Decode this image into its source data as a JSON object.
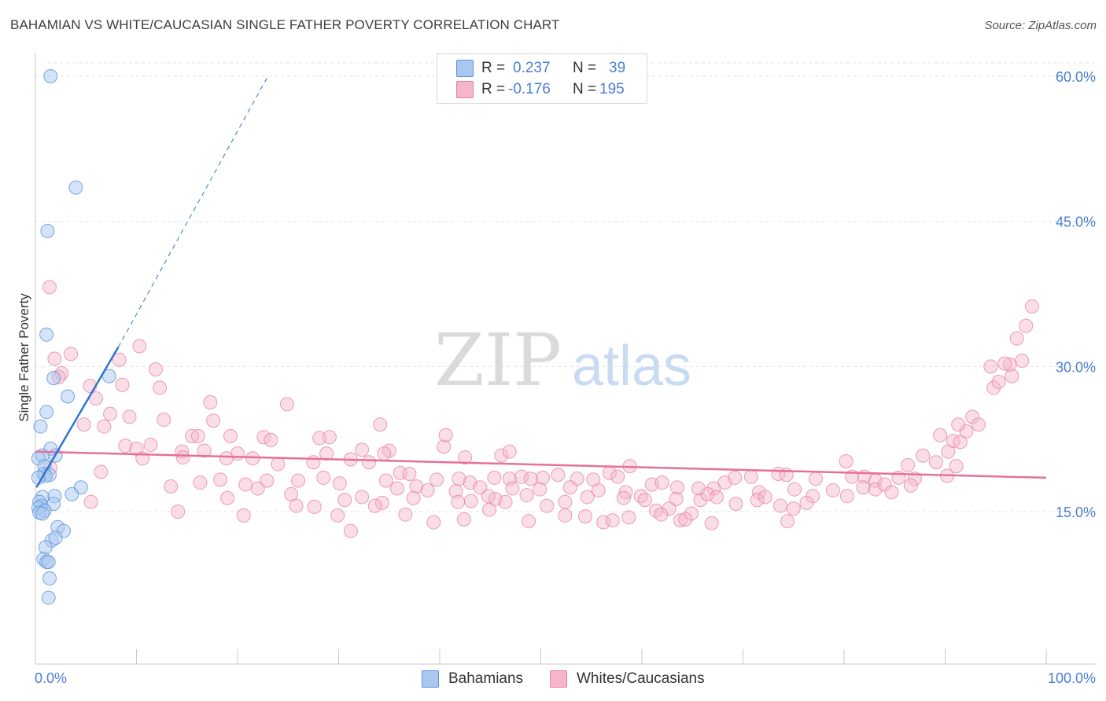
{
  "title": "BAHAMIAN VS WHITE/CAUCASIAN SINGLE FATHER POVERTY CORRELATION CHART",
  "source": "Source: ZipAtlas.com",
  "watermark": {
    "zip": "ZIP",
    "atlas": "atlas"
  },
  "colors": {
    "blue_fill": "#a9c8f0",
    "blue_stroke": "#5b93d8",
    "blue_line": "#2f74d0",
    "pink_fill": "#f5b6ca",
    "pink_stroke": "#e77fa0",
    "pink_line": "#e5719a",
    "value_text": "#4a7fd4"
  },
  "legend": {
    "rows": [
      {
        "r_label": "R =",
        "r_value": "0.237",
        "n_label": "N =",
        "n_value": "39"
      },
      {
        "r_label": "R =",
        "r_value": "-0.176",
        "n_label": "N =",
        "n_value": "195"
      }
    ]
  },
  "bottom_legend": {
    "series_a": "Bahamians",
    "series_b": "Whites/Caucasians"
  },
  "chart_data": {
    "type": "scatter",
    "xlabel": "",
    "ylabel": "Single Father Poverty",
    "xlim": [
      0,
      100
    ],
    "ylim": [
      0,
      62
    ],
    "x_tick_labels": [
      "0.0%",
      "100.0%"
    ],
    "y_ticks": [
      15,
      30,
      45,
      60
    ],
    "y_tick_labels": [
      "15.0%",
      "30.0%",
      "45.0%",
      "60.0%"
    ],
    "grid": true,
    "series": [
      {
        "name": "Bahamians",
        "R": 0.237,
        "N": 39,
        "trend": {
          "x0": 0.1,
          "y0": 17.5,
          "x1": 8.2,
          "y1": 32.0,
          "dash_to_x": 23.0,
          "dash_to_y": 60.0
        },
        "points": [
          [
            1.5,
            60.0
          ],
          [
            4.0,
            48.5
          ],
          [
            1.2,
            44.0
          ],
          [
            1.1,
            33.3
          ],
          [
            1.8,
            28.8
          ],
          [
            3.2,
            26.9
          ],
          [
            7.3,
            29.0
          ],
          [
            1.1,
            25.3
          ],
          [
            0.5,
            23.8
          ],
          [
            1.5,
            21.5
          ],
          [
            0.7,
            20.8
          ],
          [
            0.3,
            20.5
          ],
          [
            2.0,
            20.8
          ],
          [
            0.9,
            19.7
          ],
          [
            0.8,
            18.9
          ],
          [
            1.4,
            18.8
          ],
          [
            1.0,
            18.7
          ],
          [
            0.3,
            18.5
          ],
          [
            4.5,
            17.5
          ],
          [
            0.7,
            16.5
          ],
          [
            1.9,
            16.6
          ],
          [
            3.6,
            16.8
          ],
          [
            0.4,
            16.0
          ],
          [
            0.6,
            15.6
          ],
          [
            1.8,
            15.8
          ],
          [
            0.3,
            15.4
          ],
          [
            0.9,
            15.1
          ],
          [
            0.4,
            14.9
          ],
          [
            0.7,
            14.8
          ],
          [
            2.2,
            13.4
          ],
          [
            2.8,
            13.0
          ],
          [
            1.6,
            12.0
          ],
          [
            2.0,
            12.3
          ],
          [
            1.0,
            11.3
          ],
          [
            0.8,
            10.1
          ],
          [
            1.1,
            9.8
          ],
          [
            1.3,
            9.8
          ],
          [
            1.4,
            8.1
          ],
          [
            1.3,
            6.1
          ]
        ]
      },
      {
        "name": "Whites/Caucasians",
        "R": -0.176,
        "N": 195,
        "trend": {
          "x0": 0.0,
          "y0": 21.2,
          "x1": 100.0,
          "y1": 18.5
        },
        "points": [
          [
            1.4,
            38.2
          ],
          [
            3.5,
            31.3
          ],
          [
            1.9,
            30.8
          ],
          [
            2.6,
            29.3
          ],
          [
            2.3,
            28.9
          ],
          [
            8.3,
            30.7
          ],
          [
            10.3,
            32.1
          ],
          [
            11.9,
            29.7
          ],
          [
            12.3,
            27.8
          ],
          [
            5.4,
            28.0
          ],
          [
            8.6,
            28.1
          ],
          [
            6.0,
            26.7
          ],
          [
            7.4,
            25.1
          ],
          [
            9.3,
            24.8
          ],
          [
            4.8,
            24.0
          ],
          [
            6.8,
            23.8
          ],
          [
            12.7,
            24.5
          ],
          [
            17.3,
            26.3
          ],
          [
            17.6,
            24.4
          ],
          [
            24.9,
            26.1
          ],
          [
            34.1,
            24.0
          ],
          [
            15.5,
            22.8
          ],
          [
            16.1,
            22.8
          ],
          [
            19.3,
            22.8
          ],
          [
            22.6,
            22.7
          ],
          [
            23.3,
            22.4
          ],
          [
            28.1,
            22.6
          ],
          [
            29.1,
            22.7
          ],
          [
            8.9,
            21.8
          ],
          [
            10.0,
            21.5
          ],
          [
            11.4,
            21.9
          ],
          [
            14.5,
            21.2
          ],
          [
            16.7,
            21.3
          ],
          [
            20.0,
            21.0
          ],
          [
            28.8,
            21.0
          ],
          [
            32.3,
            21.4
          ],
          [
            35.0,
            21.3
          ],
          [
            40.4,
            21.7
          ],
          [
            40.6,
            22.9
          ],
          [
            10.6,
            20.5
          ],
          [
            14.6,
            20.6
          ],
          [
            18.9,
            20.5
          ],
          [
            21.5,
            20.5
          ],
          [
            27.5,
            20.1
          ],
          [
            31.2,
            20.4
          ],
          [
            34.5,
            21.0
          ],
          [
            42.5,
            20.6
          ],
          [
            46.1,
            20.8
          ],
          [
            46.9,
            21.2
          ],
          [
            6.5,
            19.1
          ],
          [
            24.0,
            19.9
          ],
          [
            33.0,
            20.1
          ],
          [
            36.1,
            19.0
          ],
          [
            37.0,
            18.9
          ],
          [
            43.0,
            18.0
          ],
          [
            48.1,
            18.6
          ],
          [
            50.2,
            18.5
          ],
          [
            55.2,
            18.3
          ],
          [
            56.8,
            19.0
          ],
          [
            57.6,
            18.6
          ],
          [
            16.3,
            18.0
          ],
          [
            18.3,
            18.3
          ],
          [
            20.8,
            17.8
          ],
          [
            22.9,
            18.2
          ],
          [
            26.0,
            18.2
          ],
          [
            28.5,
            18.5
          ],
          [
            30.1,
            17.9
          ],
          [
            34.7,
            18.2
          ],
          [
            37.7,
            17.6
          ],
          [
            39.7,
            18.3
          ],
          [
            41.9,
            18.4
          ],
          [
            45.4,
            18.5
          ],
          [
            46.9,
            18.4
          ],
          [
            49.0,
            18.4
          ],
          [
            51.7,
            18.8
          ],
          [
            53.6,
            18.4
          ],
          [
            58.8,
            19.7
          ],
          [
            61.0,
            17.8
          ],
          [
            62.0,
            18.0
          ],
          [
            68.2,
            18.0
          ],
          [
            69.2,
            18.5
          ],
          [
            70.8,
            18.6
          ],
          [
            73.5,
            18.9
          ],
          [
            74.3,
            18.8
          ],
          [
            77.2,
            18.4
          ],
          [
            78.9,
            17.2
          ],
          [
            80.2,
            20.2
          ],
          [
            80.8,
            18.6
          ],
          [
            82.0,
            18.6
          ],
          [
            83.1,
            18.2
          ],
          [
            85.4,
            18.5
          ],
          [
            86.3,
            19.8
          ],
          [
            87.0,
            18.4
          ],
          [
            87.8,
            20.8
          ],
          [
            89.1,
            20.1
          ],
          [
            90.2,
            18.7
          ],
          [
            91.1,
            19.7
          ],
          [
            13.4,
            17.6
          ],
          [
            22.0,
            17.4
          ],
          [
            25.3,
            16.8
          ],
          [
            30.6,
            16.2
          ],
          [
            35.8,
            17.4
          ],
          [
            38.8,
            17.2
          ],
          [
            41.6,
            17.1
          ],
          [
            44.0,
            17.5
          ],
          [
            45.5,
            16.3
          ],
          [
            47.2,
            17.4
          ],
          [
            49.9,
            17.3
          ],
          [
            52.9,
            17.5
          ],
          [
            55.7,
            17.2
          ],
          [
            58.4,
            17.0
          ],
          [
            59.9,
            16.6
          ],
          [
            63.5,
            17.5
          ],
          [
            65.6,
            17.4
          ],
          [
            67.1,
            17.4
          ],
          [
            71.6,
            17.0
          ],
          [
            75.1,
            17.3
          ],
          [
            76.9,
            16.6
          ],
          [
            80.3,
            16.6
          ],
          [
            81.9,
            17.5
          ],
          [
            83.1,
            17.3
          ],
          [
            84.0,
            17.8
          ],
          [
            84.7,
            17.0
          ],
          [
            86.6,
            17.7
          ],
          [
            19.0,
            16.4
          ],
          [
            25.8,
            15.6
          ],
          [
            27.6,
            15.5
          ],
          [
            32.3,
            16.5
          ],
          [
            34.3,
            15.9
          ],
          [
            37.4,
            16.4
          ],
          [
            41.8,
            16.0
          ],
          [
            43.1,
            16.1
          ],
          [
            44.8,
            16.6
          ],
          [
            46.5,
            16.0
          ],
          [
            48.6,
            16.7
          ],
          [
            52.4,
            16.0
          ],
          [
            54.6,
            16.5
          ],
          [
            58.2,
            16.4
          ],
          [
            60.3,
            16.2
          ],
          [
            63.4,
            16.3
          ],
          [
            65.8,
            16.2
          ],
          [
            66.5,
            16.8
          ],
          [
            67.4,
            16.5
          ],
          [
            69.3,
            15.8
          ],
          [
            71.4,
            16.2
          ],
          [
            72.2,
            16.5
          ],
          [
            73.7,
            15.6
          ],
          [
            75.0,
            15.3
          ],
          [
            76.3,
            15.9
          ],
          [
            1.5,
            19.5
          ],
          [
            44.9,
            15.2
          ],
          [
            50.6,
            15.6
          ],
          [
            58.7,
            14.4
          ],
          [
            61.4,
            15.1
          ],
          [
            62.7,
            15.3
          ],
          [
            63.8,
            14.1
          ],
          [
            74.4,
            14.0
          ],
          [
            14.1,
            15.0
          ],
          [
            20.6,
            14.6
          ],
          [
            29.9,
            14.6
          ],
          [
            39.4,
            13.9
          ],
          [
            48.8,
            14.0
          ],
          [
            52.4,
            14.6
          ],
          [
            56.2,
            13.9
          ],
          [
            57.1,
            14.1
          ],
          [
            61.9,
            14.7
          ],
          [
            64.9,
            14.8
          ],
          [
            66.9,
            13.8
          ],
          [
            31.2,
            13.0
          ],
          [
            36.6,
            14.7
          ],
          [
            42.4,
            14.2
          ],
          [
            54.4,
            14.5
          ],
          [
            64.3,
            14.2
          ],
          [
            5.5,
            16.0
          ],
          [
            33.6,
            15.6
          ],
          [
            90.3,
            21.2
          ],
          [
            90.8,
            22.3
          ],
          [
            91.5,
            22.2
          ],
          [
            92.1,
            23.3
          ],
          [
            92.7,
            24.8
          ],
          [
            94.8,
            27.8
          ],
          [
            95.3,
            28.4
          ],
          [
            96.6,
            29.0
          ],
          [
            97.6,
            30.6
          ],
          [
            96.4,
            30.2
          ],
          [
            95.9,
            30.3
          ],
          [
            98.6,
            36.2
          ],
          [
            98.0,
            34.2
          ],
          [
            91.3,
            24.0
          ],
          [
            89.5,
            22.9
          ],
          [
            93.3,
            24.0
          ],
          [
            97.1,
            32.9
          ],
          [
            94.5,
            30.0
          ]
        ]
      }
    ]
  }
}
